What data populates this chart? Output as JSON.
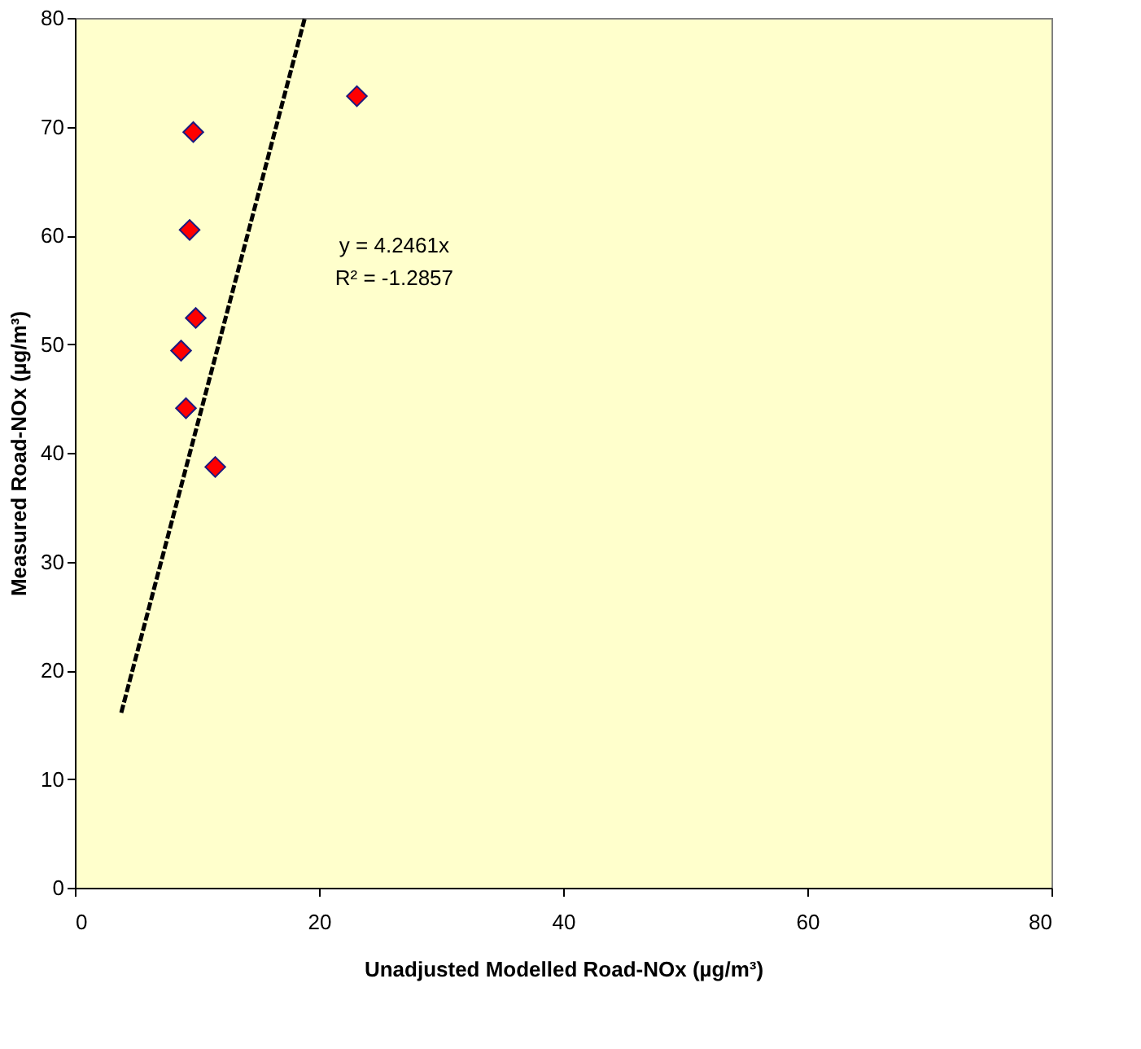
{
  "chart_data": {
    "type": "scatter",
    "xlabel": "Unadjusted Modelled Road-NOx (µg/m³)",
    "ylabel": "Measured Road-NOx (µg/m³)",
    "series": [
      {
        "type": "scatter",
        "color": "#ff0000",
        "marker": "diamond",
        "x": [
          9.7,
          9.4,
          9.9,
          8.7,
          9.1,
          11.5,
          23.1
        ],
        "values": [
          69.5,
          60.5,
          52.4,
          49.4,
          44.1,
          38.7,
          72.8
        ]
      },
      {
        "type": "line",
        "color": "#000000",
        "marker": "none",
        "line_style": "dashed",
        "x": [
          3.8,
          18.84
        ],
        "values": [
          16.1,
          80
        ]
      }
    ],
    "annotations": [
      "y = 4.2461x",
      "R² = -1.2857"
    ],
    "xlim": [
      0,
      80
    ],
    "xticks": [
      0,
      20,
      40,
      60,
      80
    ],
    "ylim": [
      0,
      80
    ],
    "yticks": [
      0,
      10,
      20,
      30,
      40,
      50,
      60,
      70,
      80
    ],
    "grid": false
  }
}
